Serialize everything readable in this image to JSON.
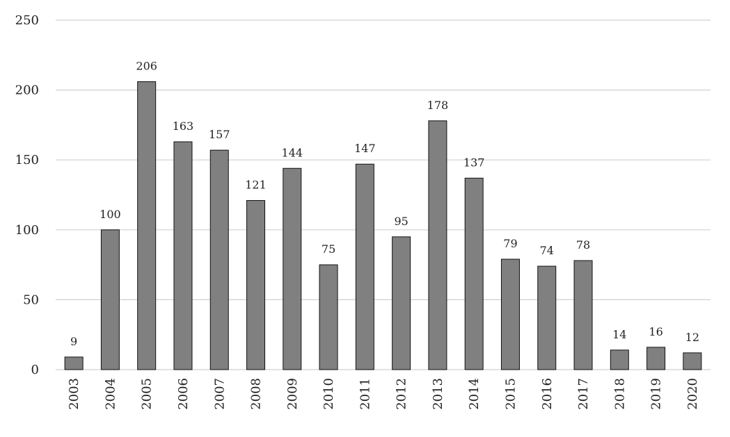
{
  "chart_data": {
    "type": "bar",
    "categories": [
      "2003",
      "2004",
      "2005",
      "2006",
      "2007",
      "2008",
      "2009",
      "2010",
      "2011",
      "2012",
      "2013",
      "2014",
      "2015",
      "2016",
      "2017",
      "2018",
      "2019",
      "2020"
    ],
    "values": [
      9,
      100,
      206,
      163,
      157,
      121,
      144,
      75,
      147,
      95,
      178,
      137,
      79,
      74,
      78,
      14,
      16,
      12
    ],
    "ylim": [
      0,
      250
    ],
    "yticks": [
      0,
      50,
      100,
      150,
      200,
      250
    ],
    "grid": true,
    "bar_color": "#808080",
    "bar_edge_color": "#111111",
    "grid_color": "#d0d0d0",
    "xtick_rotation": "vertical"
  }
}
